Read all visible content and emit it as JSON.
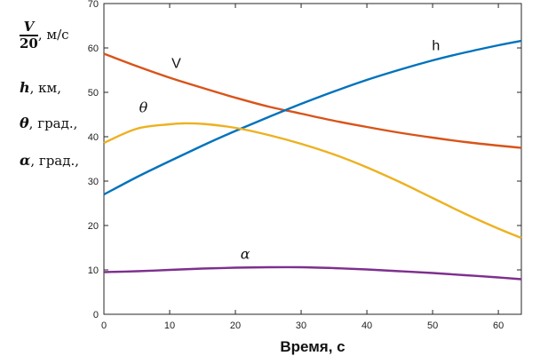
{
  "y_legend": {
    "v_numerator": "V",
    "v_denominator": "20",
    "v_units": ", м/с",
    "h_symbol": "h",
    "h_units": ", км,",
    "theta_symbol": "θ",
    "theta_units": ", град.,",
    "alpha_symbol": "α",
    "alpha_units": ", град.,"
  },
  "chart_data": {
    "type": "line",
    "xlabel": "Время, с",
    "ylabel": "",
    "title": "",
    "xlim": [
      0,
      63.5
    ],
    "ylim": [
      0,
      70
    ],
    "x_ticks": [
      0,
      10,
      20,
      30,
      40,
      50,
      60
    ],
    "y_ticks": [
      0,
      10,
      20,
      30,
      40,
      50,
      60,
      70
    ],
    "grid": false,
    "series": [
      {
        "name": "V",
        "color": "#d95319",
        "x": [
          0,
          5,
          10,
          15,
          20,
          25,
          30,
          35,
          40,
          45,
          50,
          55,
          60,
          63.5
        ],
        "y": [
          58.7,
          55.9,
          53.3,
          51.0,
          48.8,
          46.8,
          45.2,
          43.6,
          42.2,
          40.9,
          39.8,
          38.8,
          38.0,
          37.5
        ]
      },
      {
        "name": "h",
        "color": "#0072bd",
        "x": [
          0,
          5,
          10,
          15,
          20,
          25,
          30,
          35,
          40,
          45,
          50,
          55,
          60,
          63.5
        ],
        "y": [
          27.0,
          30.9,
          34.5,
          38.0,
          41.3,
          44.4,
          47.4,
          50.2,
          52.8,
          55.1,
          57.2,
          59.0,
          60.6,
          61.6
        ]
      },
      {
        "name": "θ",
        "color": "#edb120",
        "x": [
          0,
          5,
          10,
          12,
          15,
          20,
          25,
          30,
          35,
          40,
          45,
          50,
          55,
          60,
          63.5
        ],
        "y": [
          38.6,
          41.8,
          42.8,
          43.0,
          42.9,
          42.0,
          40.4,
          38.4,
          36.0,
          33.1,
          29.8,
          26.2,
          22.6,
          19.3,
          17.2
        ]
      },
      {
        "name": "α",
        "color": "#7e2f8e",
        "x": [
          0,
          5,
          10,
          15,
          20,
          25,
          30,
          35,
          40,
          45,
          50,
          55,
          60,
          63.5
        ],
        "y": [
          9.5,
          9.7,
          10.0,
          10.3,
          10.5,
          10.6,
          10.6,
          10.4,
          10.1,
          9.7,
          9.3,
          8.8,
          8.3,
          7.9
        ]
      }
    ],
    "annotations": [
      {
        "text": "V",
        "x": 11,
        "y": 55.5,
        "series": "V"
      },
      {
        "text": "h",
        "x": 50.5,
        "y": 59.5,
        "series": "h"
      },
      {
        "text": "θ",
        "x": 6,
        "y": 45.5,
        "series": "θ"
      },
      {
        "text": "α",
        "x": 21.5,
        "y": 12.5,
        "series": "α"
      }
    ]
  }
}
